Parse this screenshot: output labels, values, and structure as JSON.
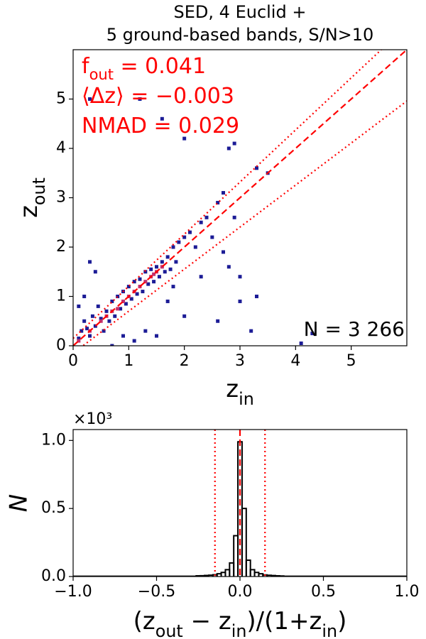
{
  "chart_data": [
    {
      "type": "scatter",
      "title": [
        "SED, 4 Euclid +",
        "5 ground-based bands, S/N>10"
      ],
      "xlabel": "z_in",
      "ylabel": "z_out",
      "annotations": [
        "f_out = 0.041",
        "⟨Δz⟩ = −0.003",
        "NMAD = 0.029"
      ],
      "count_label": "N = 3 266",
      "xlim": [
        0,
        6
      ],
      "ylim": [
        0,
        6
      ],
      "xticks": [
        0,
        1,
        2,
        3,
        4,
        5
      ],
      "yticks": [
        0,
        1,
        2,
        3,
        4,
        5
      ],
      "series": [
        {
          "color": "#1c1c96",
          "x": [
            0.1,
            0.15,
            0.2,
            0.25,
            0.3,
            0.35,
            0.4,
            0.45,
            0.5,
            0.55,
            0.6,
            0.65,
            0.7,
            0.75,
            0.8,
            0.85,
            0.9,
            0.95,
            1.0,
            1.05,
            1.1,
            1.15,
            1.2,
            1.25,
            1.3,
            1.35,
            1.4,
            1.45,
            1.5,
            1.55,
            1.6,
            1.65,
            1.7,
            1.75,
            1.8,
            1.85,
            1.9,
            2.0,
            2.1,
            2.2,
            2.3,
            2.4,
            2.5,
            2.6,
            2.7,
            2.9,
            3.3,
            3.5,
            2.8,
            0.3,
            1.2,
            1.6,
            2.0,
            2.9,
            0.3,
            0.4,
            0.7,
            1.1,
            1.3,
            0.9,
            1.5,
            2.0,
            2.6,
            3.2,
            3.3,
            3.0,
            2.8,
            1.7,
            3.0,
            4.3,
            4.1,
            2.7,
            0.2,
            0.1,
            1.8,
            2.3
          ],
          "y": [
            0.15,
            0.3,
            0.5,
            0.35,
            0.2,
            0.6,
            0.4,
            0.8,
            0.55,
            0.3,
            0.7,
            0.5,
            0.9,
            0.6,
            1.0,
            0.75,
            1.1,
            0.85,
            1.2,
            0.95,
            1.3,
            1.05,
            1.35,
            1.1,
            1.5,
            1.25,
            1.55,
            1.3,
            1.6,
            1.4,
            1.7,
            1.5,
            1.8,
            1.55,
            2.0,
            1.7,
            2.1,
            2.2,
            2.3,
            2.0,
            2.5,
            2.6,
            2.2,
            2.9,
            3.1,
            2.6,
            3.6,
            3.5,
            4.0,
            5.0,
            5.0,
            4.6,
            4.2,
            4.1,
            1.7,
            1.5,
            0.0,
            0.1,
            0.3,
            0.2,
            0.2,
            0.6,
            0.5,
            0.3,
            1.0,
            0.9,
            1.6,
            0.9,
            1.4,
            0.25,
            0.05,
            1.9,
            1.0,
            0.8,
            1.2,
            1.4
          ]
        },
        {
          "color": "#c2306e",
          "x": [
            0.1,
            0.3,
            0.5,
            0.6,
            0.7,
            0.8,
            0.9,
            1.0,
            1.1,
            1.2,
            1.3,
            1.4,
            1.45,
            1.5,
            1.6
          ],
          "y": [
            0.1,
            0.3,
            0.5,
            0.6,
            0.7,
            0.75,
            0.9,
            1.0,
            1.1,
            1.2,
            1.3,
            1.4,
            1.45,
            1.5,
            1.6
          ]
        }
      ],
      "lines": [
        {
          "style": "dashed",
          "color": "#ff0000",
          "x": [
            0,
            6
          ],
          "y": [
            0,
            6
          ]
        },
        {
          "style": "dotted",
          "color": "#ff0000",
          "x": [
            0,
            5.54
          ],
          "y": [
            0.15,
            6
          ]
        },
        {
          "style": "dotted",
          "color": "#ff0000",
          "x": [
            0,
            6
          ],
          "y": [
            -0.15,
            4.96
          ]
        }
      ]
    },
    {
      "type": "histogram",
      "xlabel": "(z_out − z_in)/(1+z_in)",
      "ylabel": "N",
      "offset_text": "×10³",
      "xlim": [
        -1,
        1
      ],
      "ylim": [
        0,
        1.08
      ],
      "xticks": [
        {
          "value": -1,
          "label": "−1.0"
        },
        {
          "value": -0.5,
          "label": "−0.5"
        },
        {
          "value": 0,
          "label": "0.0"
        },
        {
          "value": 0.5,
          "label": "0.5"
        },
        {
          "value": 1,
          "label": "1.0"
        }
      ],
      "yticks": [
        {
          "value": 0,
          "label": "0.0"
        },
        {
          "value": 0.5,
          "label": "0.5"
        },
        {
          "value": 1,
          "label": "1.0"
        }
      ],
      "bins": [
        -1,
        -0.2625,
        -0.2375,
        -0.2125,
        -0.1875,
        -0.1625,
        -0.1375,
        -0.1125,
        -0.0875,
        -0.0625,
        -0.0375,
        -0.0125,
        0.0125,
        0.0375,
        0.0625,
        0.0875,
        0.1125,
        0.1375,
        0.1625,
        0.1875,
        0.2125,
        0.2375,
        0.2625,
        1
      ],
      "values": [
        0.002,
        0.005,
        0.006,
        0.008,
        0.01,
        0.013,
        0.02,
        0.03,
        0.05,
        0.1,
        0.3,
        0.99,
        0.5,
        0.12,
        0.05,
        0.03,
        0.02,
        0.012,
        0.009,
        0.007,
        0.005,
        0.004,
        0.002
      ],
      "color": "#000000",
      "vlines": [
        {
          "value": -0.15,
          "style": "dotted",
          "color": "#ff0000"
        },
        {
          "value": 0,
          "style": "dashed",
          "color": "#ff0000"
        },
        {
          "value": 0.15,
          "style": "dotted",
          "color": "#ff0000"
        }
      ]
    }
  ]
}
